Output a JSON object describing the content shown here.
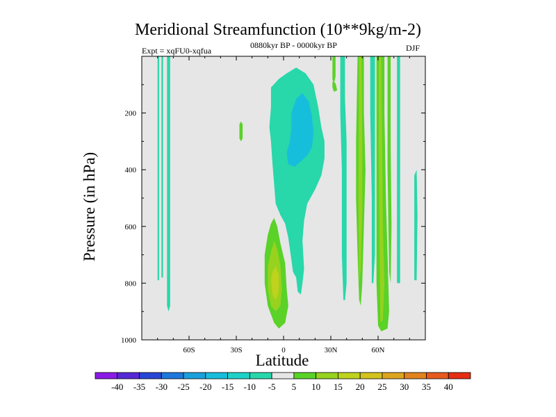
{
  "chart_data": {
    "type": "heatmap",
    "title": "Meridional Streamfunction (10**9kg/m-2)",
    "left_string": "Expt = xqFU0-xqfua",
    "center_string": "0880kyr BP - 0000kyr BP",
    "right_string": "DJF",
    "xlabel": "Latitude",
    "ylabel": "Pressure (in hPa)",
    "xlim": [
      -90,
      90
    ],
    "ylim": [
      1000,
      0
    ],
    "xticks": [
      {
        "value": -60,
        "label": "60S"
      },
      {
        "value": -30,
        "label": "30S"
      },
      {
        "value": 0,
        "label": "0"
      },
      {
        "value": 30,
        "label": "30N"
      },
      {
        "value": 60,
        "label": "60N"
      }
    ],
    "yticks": [
      {
        "value": 200,
        "label": "200"
      },
      {
        "value": 400,
        "label": "400"
      },
      {
        "value": 600,
        "label": "600"
      },
      {
        "value": 800,
        "label": "800"
      },
      {
        "value": 1000,
        "label": "1000"
      }
    ],
    "background_level_color": "#e6e6e6",
    "colorbar": {
      "levels": [
        "-40",
        "-35",
        "-30",
        "-25",
        "-20",
        "-15",
        "-10",
        "-5",
        "5",
        "10",
        "15",
        "20",
        "25",
        "30",
        "35",
        "40"
      ],
      "colors": [
        "#8a1ae6",
        "#5528d6",
        "#2846d6",
        "#1e78dc",
        "#1aa0dc",
        "#16bedc",
        "#1ed2c8",
        "#28d7aa",
        "#e6e6e6",
        "#5ad228",
        "#96d21e",
        "#bed21e",
        "#d2c31e",
        "#dca51e",
        "#e1821e",
        "#e65a1e",
        "#e62d14"
      ]
    },
    "regions": [
      {
        "name": "sh-high-lat-column-a",
        "level": -10,
        "color": "#28d7aa",
        "pts": [
          [
            -80,
            0
          ],
          [
            -79,
            0
          ],
          [
            -79,
            790
          ],
          [
            -80,
            790
          ]
        ]
      },
      {
        "name": "sh-high-lat-column-b",
        "level": -10,
        "color": "#28d7aa",
        "pts": [
          [
            -77.5,
            0
          ],
          [
            -76.5,
            0
          ],
          [
            -76.5,
            780
          ],
          [
            -77.5,
            780
          ]
        ]
      },
      {
        "name": "sh-high-lat-column-c",
        "level": -10,
        "color": "#28d7aa",
        "pts": [
          [
            -74,
            0
          ],
          [
            -72,
            0
          ],
          [
            -72,
            880
          ],
          [
            -73,
            900
          ],
          [
            -74,
            880
          ]
        ]
      },
      {
        "name": "sh-midlat-green-blob",
        "level": 10,
        "color": "#5ad228",
        "pts": [
          [
            -27,
            230
          ],
          [
            -26,
            240
          ],
          [
            -26,
            290
          ],
          [
            -27,
            300
          ],
          [
            -28,
            290
          ],
          [
            -28,
            240
          ]
        ]
      },
      {
        "name": "eq-upper-cell-outer",
        "level": -10,
        "color": "#28d7aa",
        "pts": [
          [
            -8,
            110
          ],
          [
            -3,
            80
          ],
          [
            2,
            60
          ],
          [
            8,
            40
          ],
          [
            14,
            60
          ],
          [
            19,
            100
          ],
          [
            22,
            180
          ],
          [
            24,
            250
          ],
          [
            26,
            300
          ],
          [
            26,
            360
          ],
          [
            24,
            420
          ],
          [
            20,
            470
          ],
          [
            15,
            520
          ],
          [
            13,
            580
          ],
          [
            12,
            650
          ],
          [
            13,
            750
          ],
          [
            12,
            800
          ],
          [
            11,
            840
          ],
          [
            9,
            830
          ],
          [
            8,
            780
          ],
          [
            6,
            760
          ],
          [
            4,
            680
          ],
          [
            3,
            640
          ],
          [
            1,
            590
          ],
          [
            -2,
            560
          ],
          [
            -5,
            520
          ],
          [
            -6,
            450
          ],
          [
            -7,
            380
          ],
          [
            -8,
            300
          ],
          [
            -9,
            250
          ],
          [
            -8,
            180
          ]
        ]
      },
      {
        "name": "eq-upper-cell-core",
        "level": -15,
        "color": "#16bedc",
        "pts": [
          [
            8,
            150
          ],
          [
            12,
            130
          ],
          [
            16,
            160
          ],
          [
            18,
            210
          ],
          [
            19,
            270
          ],
          [
            18,
            320
          ],
          [
            15,
            350
          ],
          [
            11,
            370
          ],
          [
            7,
            390
          ],
          [
            3,
            380
          ],
          [
            2,
            340
          ],
          [
            4,
            300
          ],
          [
            5,
            250
          ],
          [
            5,
            200
          ]
        ]
      },
      {
        "name": "eq-surface-positive",
        "level": 10,
        "color": "#5ad228",
        "pts": [
          [
            -8,
            590
          ],
          [
            -6,
            570
          ],
          [
            -4,
            600
          ],
          [
            -2,
            660
          ],
          [
            1,
            730
          ],
          [
            2,
            820
          ],
          [
            3,
            880
          ],
          [
            1,
            940
          ],
          [
            -3,
            960
          ],
          [
            -6,
            940
          ],
          [
            -10,
            880
          ],
          [
            -12,
            800
          ],
          [
            -12,
            700
          ],
          [
            -10,
            630
          ]
        ]
      },
      {
        "name": "eq-surface-positive-inner",
        "level": 15,
        "color": "#96d21e",
        "pts": [
          [
            -6,
            650
          ],
          [
            -4,
            680
          ],
          [
            -2,
            740
          ],
          [
            -1,
            820
          ],
          [
            -2,
            880
          ],
          [
            -5,
            900
          ],
          [
            -8,
            880
          ],
          [
            -10,
            820
          ],
          [
            -10,
            740
          ],
          [
            -8,
            690
          ]
        ]
      },
      {
        "name": "eq-surface-positive-core",
        "level": 20,
        "color": "#bed21e",
        "pts": [
          [
            -5,
            740
          ],
          [
            -3,
            770
          ],
          [
            -3,
            830
          ],
          [
            -5,
            860
          ],
          [
            -7,
            840
          ],
          [
            -8,
            790
          ],
          [
            -7,
            760
          ]
        ]
      },
      {
        "name": "nh-streak-green-a",
        "level": 10,
        "color": "#5ad228",
        "pts": [
          [
            31,
            0
          ],
          [
            33,
            0
          ],
          [
            33,
            70
          ],
          [
            32,
            100
          ],
          [
            31,
            80
          ]
        ]
      },
      {
        "name": "nh-streak-green-b",
        "level": 10,
        "color": "#5ad228",
        "pts": [
          [
            31,
            90
          ],
          [
            33,
            95
          ],
          [
            34,
            120
          ],
          [
            32,
            125
          ],
          [
            31,
            110
          ]
        ]
      },
      {
        "name": "nh-column-teal-a",
        "level": -10,
        "color": "#28d7aa",
        "pts": [
          [
            36,
            0
          ],
          [
            39,
            0
          ],
          [
            39,
            150
          ],
          [
            40,
            300
          ],
          [
            40,
            600
          ],
          [
            40,
            800
          ],
          [
            39,
            860
          ],
          [
            38,
            860
          ],
          [
            37,
            700
          ],
          [
            37,
            400
          ],
          [
            36,
            200
          ]
        ]
      },
      {
        "name": "nh-column-green-b",
        "level": 10,
        "color": "#5ad228",
        "pts": [
          [
            47,
            0
          ],
          [
            51,
            0
          ],
          [
            51,
            200
          ],
          [
            52,
            400
          ],
          [
            51,
            600
          ],
          [
            50,
            800
          ],
          [
            49,
            880
          ],
          [
            48,
            860
          ],
          [
            47,
            700
          ],
          [
            46,
            500
          ],
          [
            46,
            300
          ]
        ]
      },
      {
        "name": "nh-column-green-b-core",
        "level": 15,
        "color": "#96d21e",
        "pts": [
          [
            48,
            0
          ],
          [
            49.5,
            0
          ],
          [
            50,
            300
          ],
          [
            50,
            550
          ],
          [
            49,
            750
          ],
          [
            48,
            800
          ],
          [
            47.5,
            500
          ]
        ]
      },
      {
        "name": "nh-column-teal-c",
        "level": -10,
        "color": "#28d7aa",
        "pts": [
          [
            55,
            0
          ],
          [
            58,
            0
          ],
          [
            58,
            200
          ],
          [
            58,
            500
          ],
          [
            58,
            700
          ],
          [
            57,
            800
          ],
          [
            56,
            800
          ],
          [
            56,
            500
          ],
          [
            55,
            200
          ]
        ]
      },
      {
        "name": "nh-column-green-d",
        "level": 10,
        "color": "#5ad228",
        "pts": [
          [
            59,
            0
          ],
          [
            64,
            0
          ],
          [
            64,
            200
          ],
          [
            65,
            500
          ],
          [
            66,
            700
          ],
          [
            67,
            900
          ],
          [
            66,
            960
          ],
          [
            62,
            970
          ],
          [
            60,
            950
          ],
          [
            59,
            800
          ],
          [
            59,
            400
          ]
        ]
      },
      {
        "name": "nh-column-green-d-core",
        "level": 15,
        "color": "#96d21e",
        "pts": [
          [
            60.5,
            0
          ],
          [
            62,
            0
          ],
          [
            62.5,
            300
          ],
          [
            63,
            600
          ],
          [
            64,
            800
          ],
          [
            63,
            930
          ],
          [
            61.5,
            940
          ],
          [
            61,
            700
          ],
          [
            60.5,
            300
          ]
        ]
      },
      {
        "name": "nh-column-green-e",
        "level": 10,
        "color": "#5ad228",
        "pts": [
          [
            66,
            0
          ],
          [
            68,
            0
          ],
          [
            68,
            300
          ],
          [
            68.5,
            600
          ],
          [
            68,
            800
          ],
          [
            67,
            760
          ],
          [
            66,
            400
          ]
        ]
      },
      {
        "name": "nh-high-lat-teal-f",
        "level": -10,
        "color": "#28d7aa",
        "pts": [
          [
            72,
            0
          ],
          [
            74,
            0
          ],
          [
            74,
            300
          ],
          [
            74,
            600
          ],
          [
            74,
            800
          ],
          [
            72,
            800
          ],
          [
            72,
            400
          ]
        ]
      },
      {
        "name": "nh-high-lat-teal-g",
        "level": -10,
        "color": "#28d7aa",
        "pts": [
          [
            83,
            420
          ],
          [
            84.5,
            400
          ],
          [
            85,
            560
          ],
          [
            84.5,
            790
          ],
          [
            83,
            790
          ],
          [
            83,
            600
          ]
        ]
      }
    ]
  }
}
